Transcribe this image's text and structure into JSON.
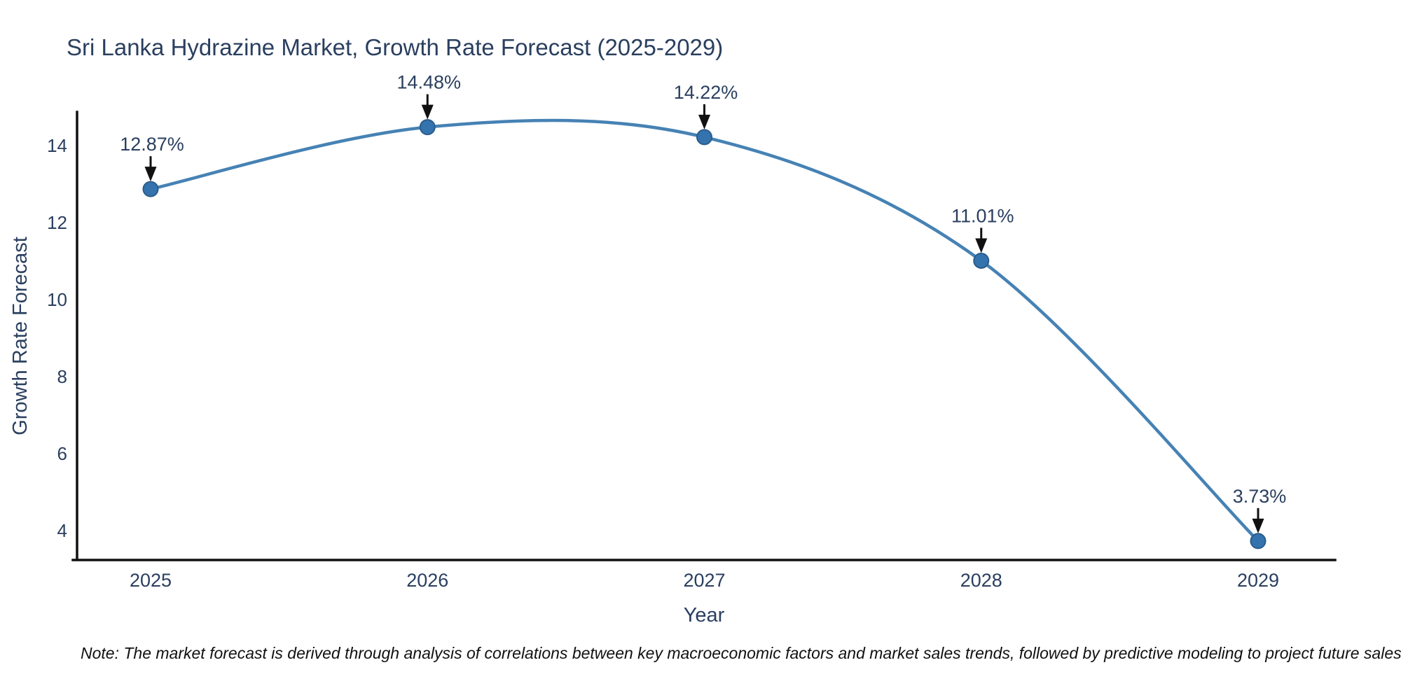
{
  "chart_data": {
    "type": "line",
    "title": "Sri Lanka Hydrazine Market, Growth Rate Forecast (2025-2029)",
    "xlabel": "Year",
    "ylabel": "Growth Rate Forecast",
    "x": [
      2025,
      2026,
      2027,
      2028,
      2029
    ],
    "y": [
      12.87,
      14.48,
      14.22,
      11.01,
      3.73
    ],
    "point_labels": [
      "12.87%",
      "14.48%",
      "14.22%",
      "11.01%",
      "3.73%"
    ],
    "xticks": [
      "2025",
      "2026",
      "2027",
      "2028",
      "2029"
    ],
    "yticks": [
      4,
      6,
      8,
      10,
      12,
      14
    ],
    "ylim": [
      3.24,
      14.84
    ],
    "xlim": [
      2024.72,
      2029.28
    ],
    "grid": false,
    "legend_position": "none",
    "line_shape": "spline",
    "note": "Note: The market forecast is derived through analysis of correlations between key macroeconomic factors and market sales trends, followed by predictive modeling to project future sales."
  },
  "colors": {
    "line": "#4682b4",
    "marker_fill": "#3473ae",
    "marker_stroke": "#2a5d8c",
    "axis": "#111111",
    "heading_text": "#2a3f5f",
    "tick_text": "#2a3f5f",
    "annotation_text": "#2a3f5f",
    "arrow": "#111111",
    "note_text": "#111111",
    "background": "#ffffff"
  }
}
